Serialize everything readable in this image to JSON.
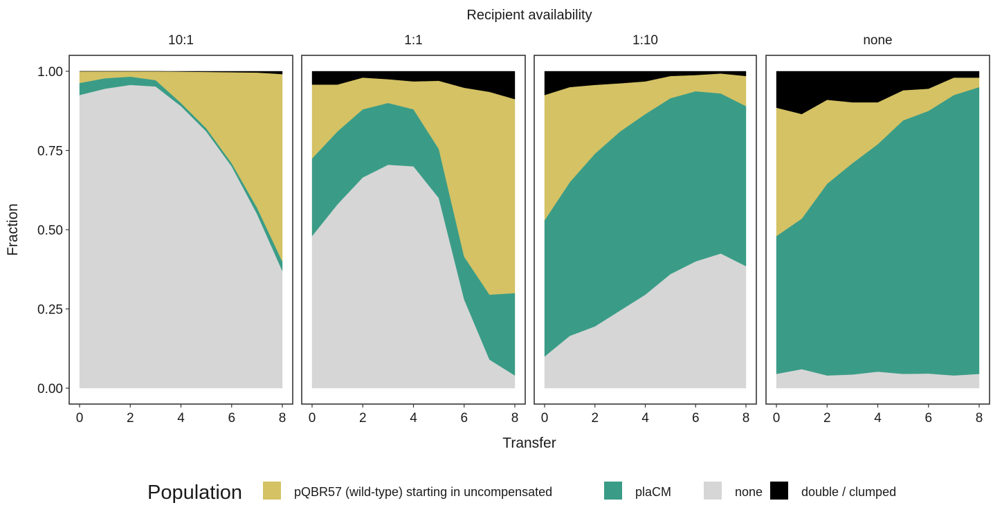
{
  "chart_data": {
    "type": "area",
    "stacked": true,
    "title": "",
    "facet_title": "Recipient availability",
    "xlabel": "Transfer",
    "ylabel": "Fraction",
    "ylim": [
      0,
      1
    ],
    "xlim": [
      0,
      8
    ],
    "x_ticks": [
      0,
      2,
      4,
      6,
      8
    ],
    "y_ticks": [
      "0.00",
      "0.25",
      "0.50",
      "0.75",
      "1.00"
    ],
    "y_tick_values": [
      0,
      0.25,
      0.5,
      0.75,
      1.0
    ],
    "grid": false,
    "legend": {
      "title": "Population",
      "placement": "bottom",
      "entries": [
        {
          "name": "pQBR57 (wild-type) starting in uncompensated",
          "color": "#D4C264"
        },
        {
          "name": "plaCM",
          "color": "#3A9C87"
        },
        {
          "name": "none",
          "color": "#D6D6D6"
        },
        {
          "name": "double / clumped",
          "color": "#000000"
        }
      ]
    },
    "stack_order_bottom_to_top": [
      "none",
      "plaCM",
      "pQBR57 (wild-type) starting in uncompensated",
      "double / clumped"
    ],
    "x": [
      0,
      1,
      2,
      3,
      4,
      5,
      6,
      7,
      8
    ],
    "panels": [
      {
        "label": "10:1",
        "series": [
          {
            "name": "none",
            "values": [
              0.925,
              0.945,
              0.957,
              0.952,
              0.89,
              0.81,
              0.7,
              0.55,
              0.37
            ]
          },
          {
            "name": "plaCM",
            "values": [
              0.038,
              0.033,
              0.026,
              0.02,
              0.01,
              0.01,
              0.01,
              0.02,
              0.03
            ]
          },
          {
            "name": "pQBR57 (wild-type) starting in uncompensated",
            "values": [
              0.037,
              0.022,
              0.017,
              0.028,
              0.099,
              0.178,
              0.287,
              0.426,
              0.591
            ]
          },
          {
            "name": "double / clumped",
            "values": [
              0.0,
              0.0,
              0.0,
              0.0,
              0.001,
              0.002,
              0.003,
              0.004,
              0.009
            ]
          }
        ]
      },
      {
        "label": "1:1",
        "series": [
          {
            "name": "none",
            "values": [
              0.48,
              0.58,
              0.665,
              0.705,
              0.7,
              0.6,
              0.28,
              0.09,
              0.04
            ]
          },
          {
            "name": "plaCM",
            "values": [
              0.245,
              0.23,
              0.215,
              0.195,
              0.18,
              0.155,
              0.135,
              0.205,
              0.26
            ]
          },
          {
            "name": "pQBR57 (wild-type) starting in uncompensated",
            "values": [
              0.233,
              0.148,
              0.1,
              0.075,
              0.088,
              0.215,
              0.533,
              0.64,
              0.612
            ]
          },
          {
            "name": "double / clumped",
            "values": [
              0.042,
              0.042,
              0.02,
              0.025,
              0.032,
              0.03,
              0.052,
              0.065,
              0.088
            ]
          }
        ]
      },
      {
        "label": "1:10",
        "series": [
          {
            "name": "none",
            "values": [
              0.1,
              0.165,
              0.195,
              0.245,
              0.295,
              0.36,
              0.4,
              0.425,
              0.385
            ]
          },
          {
            "name": "plaCM",
            "values": [
              0.43,
              0.485,
              0.545,
              0.565,
              0.57,
              0.555,
              0.537,
              0.505,
              0.505
            ]
          },
          {
            "name": "pQBR57 (wild-type) starting in uncompensated",
            "values": [
              0.395,
              0.3,
              0.217,
              0.152,
              0.103,
              0.07,
              0.051,
              0.063,
              0.095
            ]
          },
          {
            "name": "double / clumped",
            "values": [
              0.075,
              0.05,
              0.043,
              0.038,
              0.032,
              0.015,
              0.012,
              0.007,
              0.015
            ]
          }
        ]
      },
      {
        "label": "none",
        "series": [
          {
            "name": "none",
            "values": [
              0.045,
              0.06,
              0.04,
              0.043,
              0.052,
              0.045,
              0.046,
              0.04,
              0.045
            ]
          },
          {
            "name": "plaCM",
            "values": [
              0.435,
              0.475,
              0.605,
              0.667,
              0.718,
              0.8,
              0.829,
              0.885,
              0.905
            ]
          },
          {
            "name": "pQBR57 (wild-type) starting in uncompensated",
            "values": [
              0.405,
              0.33,
              0.265,
              0.192,
              0.132,
              0.095,
              0.07,
              0.055,
              0.03
            ]
          },
          {
            "name": "double / clumped",
            "values": [
              0.115,
              0.135,
              0.09,
              0.098,
              0.098,
              0.06,
              0.055,
              0.02,
              0.02
            ]
          }
        ]
      }
    ]
  }
}
